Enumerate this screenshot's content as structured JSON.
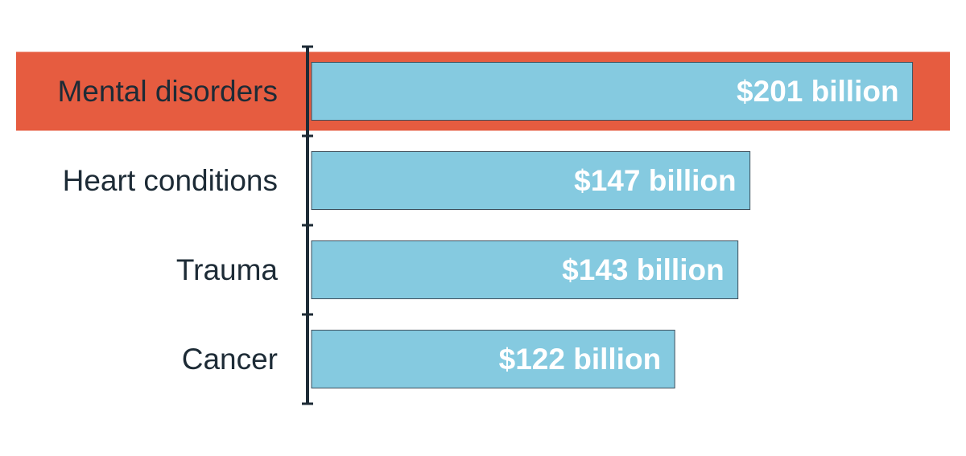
{
  "chart_data": {
    "type": "bar",
    "orientation": "horizontal",
    "categories": [
      "Mental disorders",
      "Heart conditions",
      "Trauma",
      "Cancer"
    ],
    "values": [
      201,
      147,
      143,
      122
    ],
    "value_labels": [
      "$201 billion",
      "$147 billion",
      "$143 billion",
      "$122 billion"
    ],
    "highlighted_category": "Mental disorders",
    "xlim": [
      0,
      207
    ],
    "grid": false,
    "legend": "none"
  },
  "colors": {
    "bar": "#85cae0",
    "bar_outline": "#3e4f5c",
    "highlight": "#e65c40",
    "axis": "#1d2b36",
    "category_text": "#1d2b36",
    "value_text": "#ffffff"
  }
}
